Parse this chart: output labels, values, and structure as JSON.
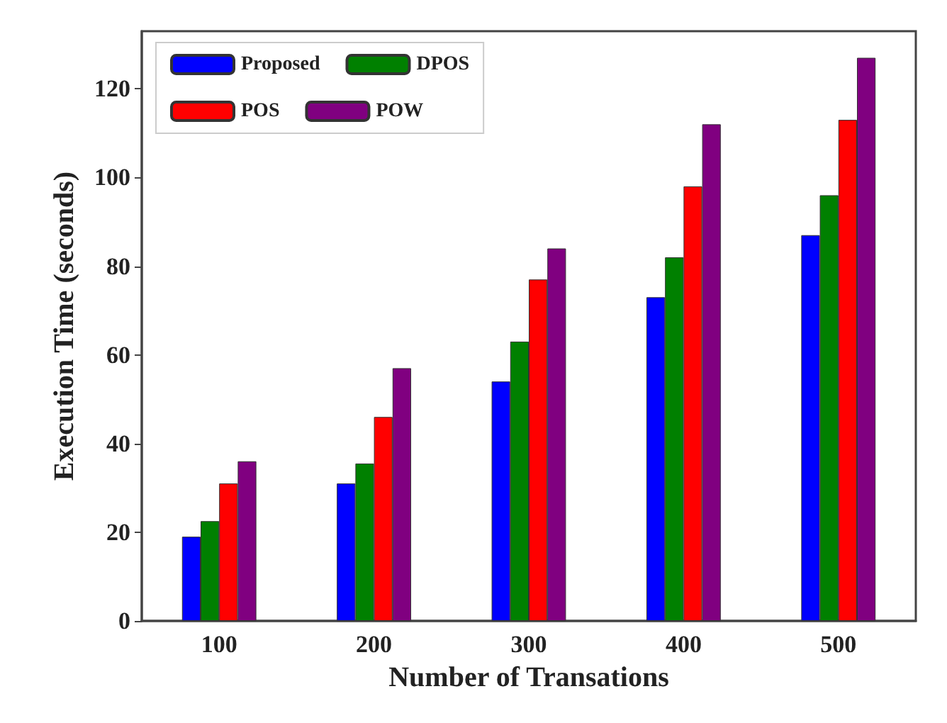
{
  "chart_data": {
    "type": "bar",
    "xlabel": "Number of Transations",
    "ylabel": "Execution Time (seconds)",
    "categories": [
      "100",
      "200",
      "300",
      "400",
      "500"
    ],
    "series": [
      {
        "name": "Proposed",
        "color": "#0000ff",
        "values": [
          19,
          31,
          54,
          73,
          87
        ]
      },
      {
        "name": "DPOS",
        "color": "#008000",
        "values": [
          22.5,
          35.5,
          63,
          82,
          96
        ]
      },
      {
        "name": "POS",
        "color": "#ff0000",
        "values": [
          31,
          46,
          77,
          98,
          113
        ]
      },
      {
        "name": "POW",
        "color": "#800080",
        "values": [
          36,
          57,
          84,
          112,
          127
        ]
      }
    ],
    "ylim": [
      0,
      133
    ],
    "yticks": [
      0,
      20,
      40,
      60,
      80,
      100,
      120
    ],
    "grid": false,
    "legend": "top left"
  }
}
